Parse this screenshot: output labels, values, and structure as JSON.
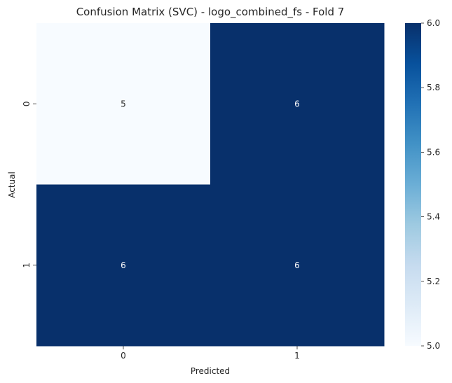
{
  "chart_data": {
    "type": "heatmap",
    "title": "Confusion Matrix (SVC) - logo_combined_fs - Fold 7",
    "xlabel": "Predicted",
    "ylabel": "Actual",
    "x_categories": [
      "0",
      "1"
    ],
    "y_categories": [
      "0",
      "1"
    ],
    "values": [
      [
        5,
        6
      ],
      [
        6,
        6
      ]
    ],
    "colormap": "Blues",
    "color_min": "#f7fbff",
    "color_max": "#08306b",
    "value_label_dark": "#262626",
    "value_label_light": "#ffffff",
    "colorbar": {
      "range": [
        5.0,
        6.0
      ],
      "ticks": [
        "5.0",
        "5.2",
        "5.4",
        "5.6",
        "5.8",
        "6.0"
      ]
    }
  }
}
